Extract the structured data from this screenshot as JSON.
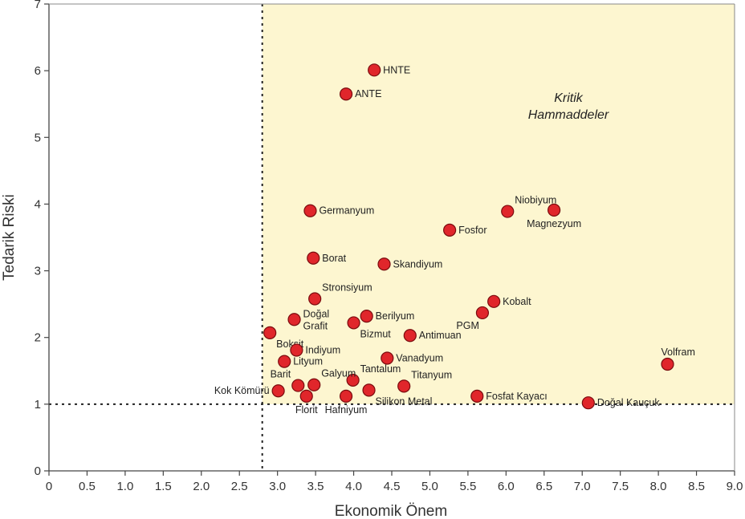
{
  "chart_data": {
    "type": "scatter",
    "xlabel": "Ekonomik Önem",
    "ylabel": "Tedarik Riski",
    "xlim": [
      0,
      9
    ],
    "ylim": [
      0,
      7
    ],
    "xticks": [
      "0",
      "0.5",
      "1.0",
      "1.5",
      "2.0",
      "2.5",
      "3.0",
      "3.5",
      "4.0",
      "4.5",
      "5.0",
      "5.5",
      "6.0",
      "6.5",
      "7.0",
      "7.5",
      "8.0",
      "8.5",
      "9.0"
    ],
    "yticks": [
      "0",
      "1",
      "2",
      "3",
      "4",
      "5",
      "6",
      "7"
    ],
    "thresholds": {
      "x": 2.8,
      "y": 1.0
    },
    "critical_region": {
      "label_line1": "Kritik",
      "label_line2": "Hammaddeler",
      "color": "#fdf6d0"
    },
    "point_color": "#e0262b",
    "points": [
      {
        "name": "HNTE",
        "x": 4.27,
        "y": 6.01,
        "pos": "right"
      },
      {
        "name": "ANTE",
        "x": 3.9,
        "y": 5.65,
        "pos": "right"
      },
      {
        "name": "Germanyum",
        "x": 3.43,
        "y": 3.9,
        "pos": "right"
      },
      {
        "name": "Niobiyum",
        "x": 6.02,
        "y": 3.89,
        "pos": "above-right"
      },
      {
        "name": "Magnezyum",
        "x": 6.63,
        "y": 3.91,
        "pos": "below"
      },
      {
        "name": "Fosfor",
        "x": 5.26,
        "y": 3.61,
        "pos": "right"
      },
      {
        "name": "Borat",
        "x": 3.47,
        "y": 3.19,
        "pos": "right"
      },
      {
        "name": "Skandiyum",
        "x": 4.4,
        "y": 3.1,
        "pos": "right"
      },
      {
        "name": "Stronsiyum",
        "x": 3.49,
        "y": 2.58,
        "pos": "above-right"
      },
      {
        "name": "Kobalt",
        "x": 5.84,
        "y": 2.54,
        "pos": "right"
      },
      {
        "name": "PGM",
        "x": 5.69,
        "y": 2.37,
        "pos": "below-left"
      },
      {
        "name": "Doğal Grafit",
        "x": 3.22,
        "y": 2.27,
        "pos": "right-two"
      },
      {
        "name": "Berilyum",
        "x": 4.17,
        "y": 2.32,
        "pos": "right"
      },
      {
        "name": "Bizmut",
        "x": 4.0,
        "y": 2.22,
        "pos": "below-right"
      },
      {
        "name": "Antimuan",
        "x": 4.74,
        "y": 2.03,
        "pos": "right"
      },
      {
        "name": "Boksit",
        "x": 2.9,
        "y": 2.07,
        "pos": "below-right"
      },
      {
        "name": "Indiyum",
        "x": 3.25,
        "y": 1.81,
        "pos": "right"
      },
      {
        "name": "Vanadyum",
        "x": 4.44,
        "y": 1.69,
        "pos": "right"
      },
      {
        "name": "Lityum",
        "x": 3.09,
        "y": 1.64,
        "pos": "right"
      },
      {
        "name": "Volfram",
        "x": 8.12,
        "y": 1.6,
        "pos": "above"
      },
      {
        "name": "Tantalum",
        "x": 3.99,
        "y": 1.36,
        "pos": "above-right"
      },
      {
        "name": "Titanyum",
        "x": 4.66,
        "y": 1.27,
        "pos": "above-right"
      },
      {
        "name": "Galyum",
        "x": 3.48,
        "y": 1.29,
        "pos": "above-right"
      },
      {
        "name": "Barit",
        "x": 3.27,
        "y": 1.28,
        "pos": "above-left"
      },
      {
        "name": "Kok Kömürü",
        "x": 3.01,
        "y": 1.2,
        "pos": "left"
      },
      {
        "name": "Silikon Metal",
        "x": 4.2,
        "y": 1.21,
        "pos": "below-right"
      },
      {
        "name": "Fosfat Kayacı",
        "x": 5.62,
        "y": 1.12,
        "pos": "right"
      },
      {
        "name": "Florit",
        "x": 3.38,
        "y": 1.12,
        "pos": "below"
      },
      {
        "name": "Hafniyum",
        "x": 3.9,
        "y": 1.12,
        "pos": "below"
      },
      {
        "name": "Doğal Kauçuk",
        "x": 7.08,
        "y": 1.02,
        "pos": "right"
      }
    ]
  }
}
